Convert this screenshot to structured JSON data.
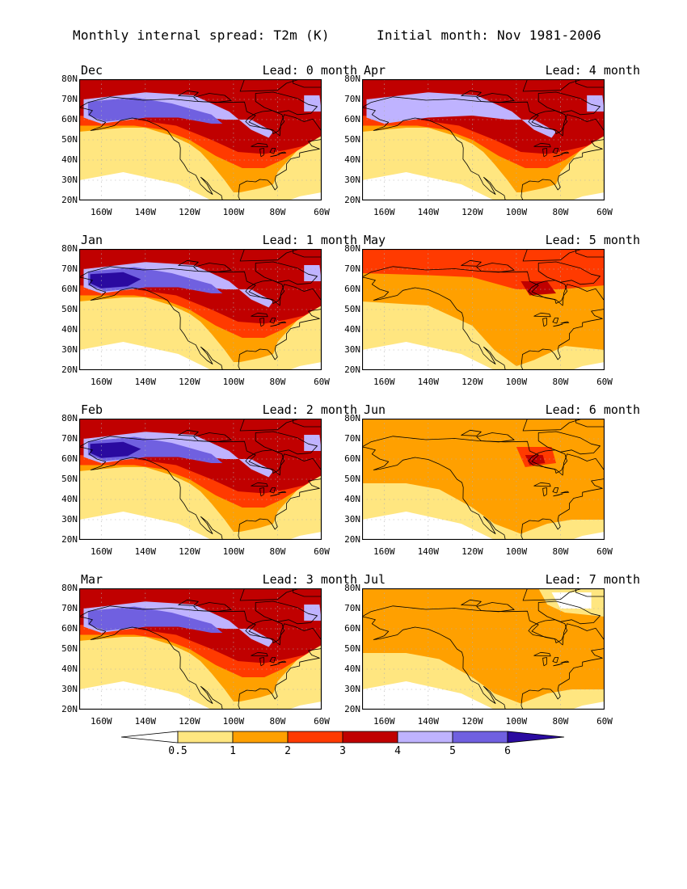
{
  "header": {
    "title_left": "Monthly internal spread: T2m (K)",
    "title_right": "Initial month: Nov 1981-2006"
  },
  "axes": {
    "lat_labels": [
      "80N",
      "70N",
      "60N",
      "50N",
      "40N",
      "30N",
      "20N"
    ],
    "lon_labels": [
      "160W",
      "140W",
      "120W",
      "100W",
      "80W",
      "60W"
    ],
    "lat_range": [
      20,
      80
    ],
    "lon_range": [
      -170,
      -60
    ]
  },
  "panels": [
    {
      "month": "Dec",
      "lead": "Lead: 0 month",
      "intensity": 3
    },
    {
      "month": "Apr",
      "lead": "Lead: 4 month",
      "intensity": 2
    },
    {
      "month": "Jan",
      "lead": "Lead: 1 month",
      "intensity": 4
    },
    {
      "month": "May",
      "lead": "Lead: 5 month",
      "intensity": 1
    },
    {
      "month": "Feb",
      "lead": "Lead: 2 month",
      "intensity": 4
    },
    {
      "month": "Jun",
      "lead": "Lead: 6 month",
      "intensity": 0
    },
    {
      "month": "Mar",
      "lead": "Lead: 3 month",
      "intensity": 3
    },
    {
      "month": "Jul",
      "lead": "Lead: 7 month",
      "intensity": -1
    }
  ],
  "colorbar": {
    "labels": [
      "0.5",
      "1",
      "2",
      "3",
      "4",
      "5",
      "6"
    ],
    "colors": [
      "#ffffff",
      "#ffe680",
      "#ffa000",
      "#ff3a00",
      "#c00000",
      "#bfb3ff",
      "#7060e0",
      "#2a0aa0"
    ]
  },
  "colors": {
    "coast": "#000000",
    "grid": "#b0b0b0"
  }
}
